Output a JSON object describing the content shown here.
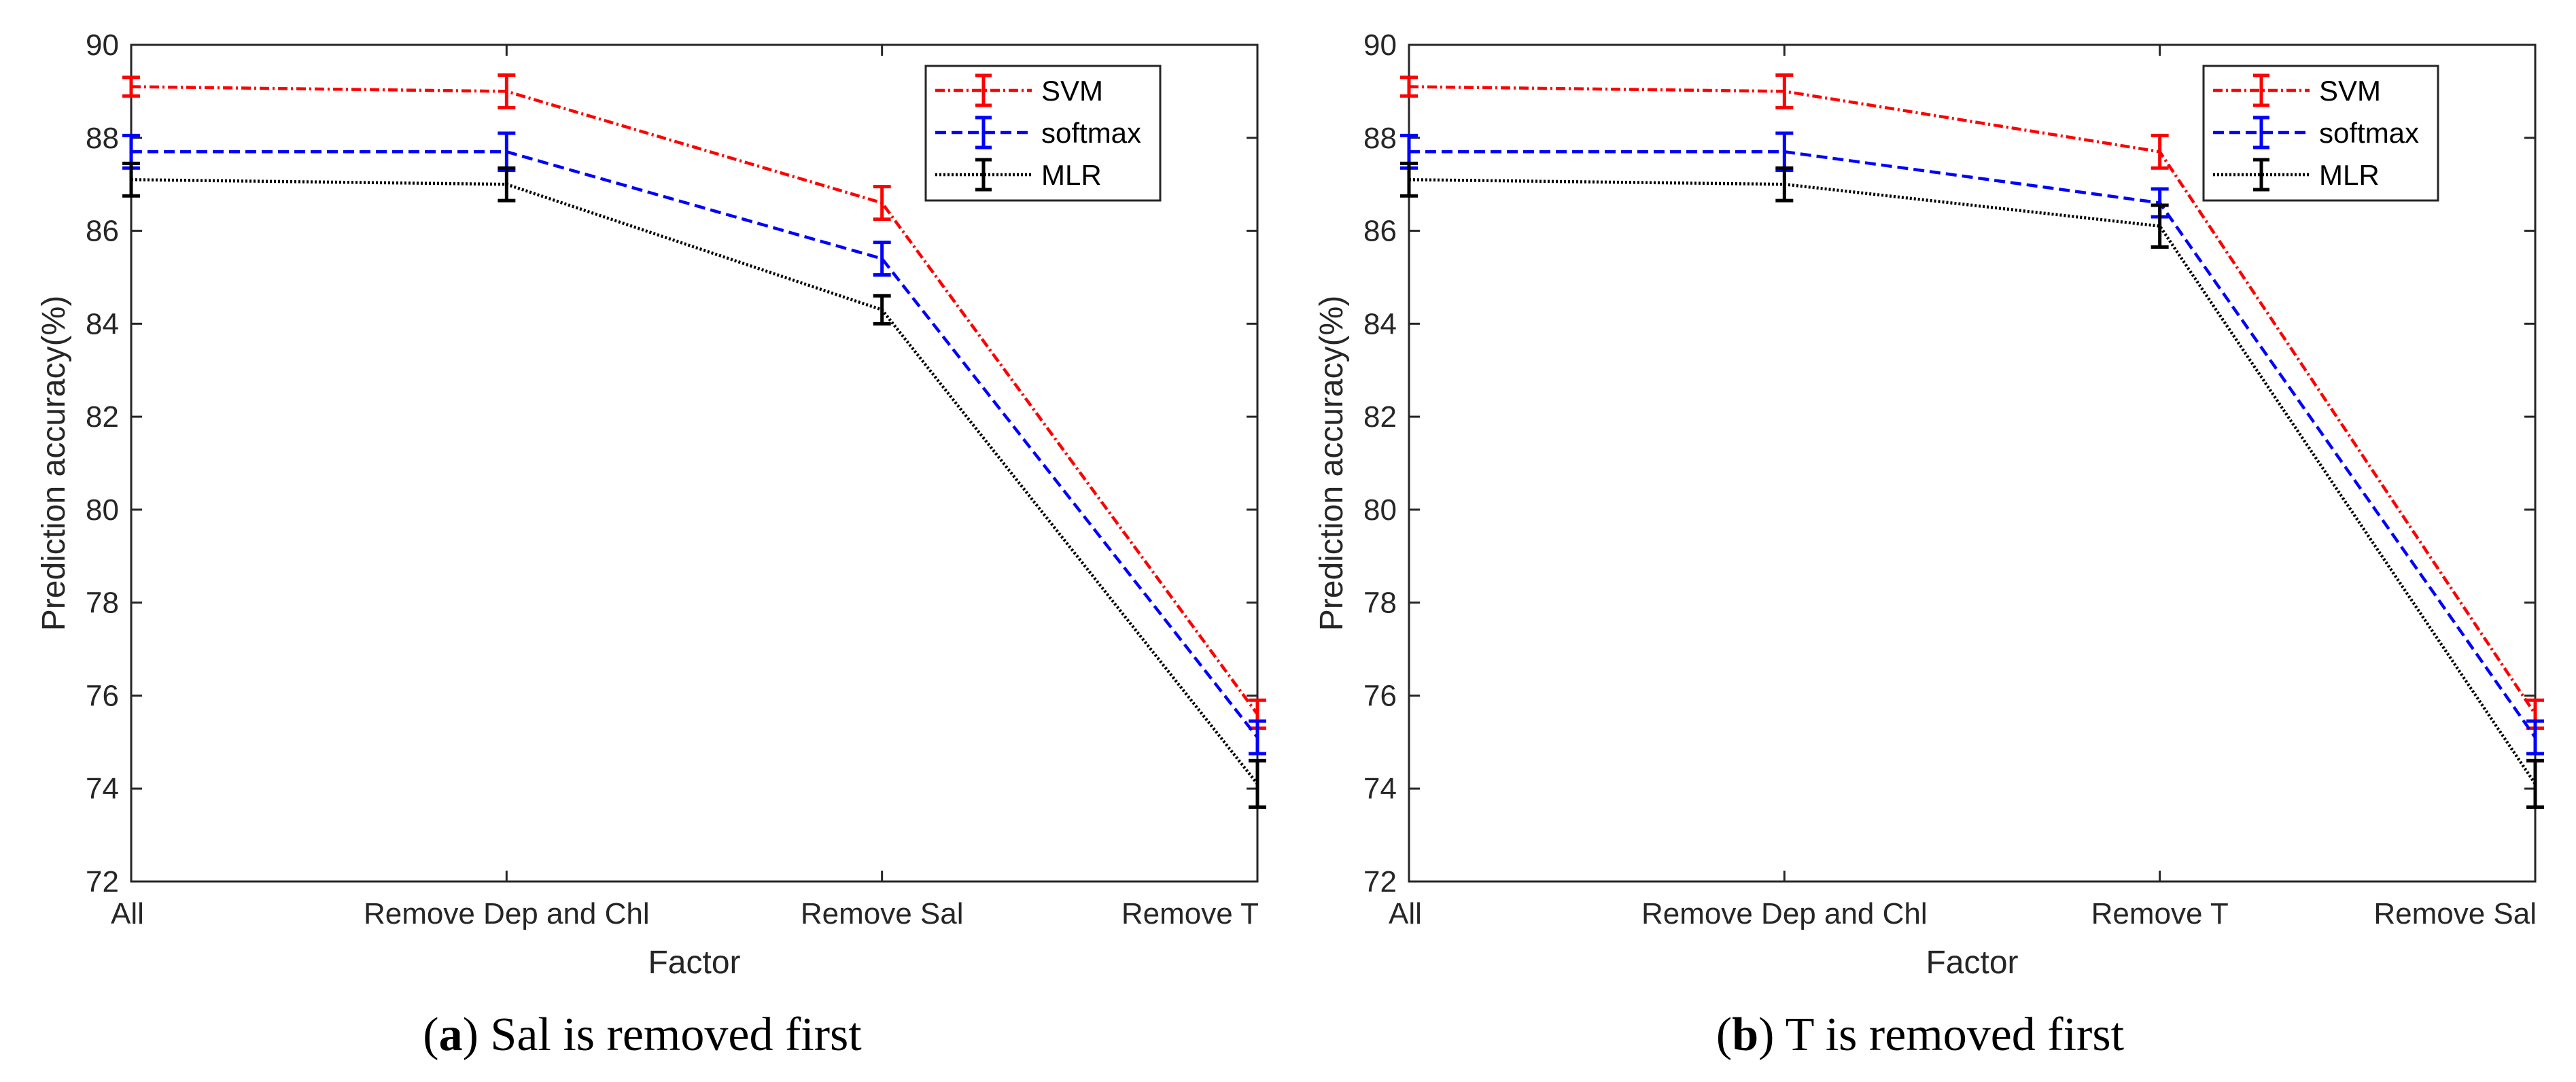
{
  "chart_data": [
    {
      "type": "line",
      "caption_letter": "a",
      "caption_text": "Sal is removed first",
      "xlabel": "Factor",
      "ylabel": "Prediction accuracy(%)",
      "categories": [
        "All",
        "Remove Dep and Chl",
        "Remove Sal",
        "Remove T"
      ],
      "ylim": [
        72,
        90
      ],
      "yticks": [
        "72",
        "74",
        "76",
        "78",
        "80",
        "82",
        "84",
        "86",
        "88",
        "90"
      ],
      "legend_position": "top-right",
      "series": [
        {
          "name": "SVM",
          "color": "#ff0000",
          "dash": "dashdot",
          "values": [
            89.1,
            89.0,
            86.6,
            75.6
          ],
          "errors": [
            0.2,
            0.35,
            0.35,
            0.3
          ]
        },
        {
          "name": "softmax",
          "color": "#0000ff",
          "dash": "dashed",
          "values": [
            87.7,
            87.7,
            85.4,
            75.1
          ],
          "errors": [
            0.35,
            0.4,
            0.35,
            0.35
          ]
        },
        {
          "name": "MLR",
          "color": "#000000",
          "dash": "dotted",
          "values": [
            87.1,
            87.0,
            84.3,
            74.1
          ],
          "errors": [
            0.35,
            0.35,
            0.3,
            0.5
          ]
        }
      ]
    },
    {
      "type": "line",
      "caption_letter": "b",
      "caption_text": "T is removed first",
      "xlabel": "Factor",
      "ylabel": "Prediction accuracy(%)",
      "categories": [
        "All",
        "Remove Dep and Chl",
        "Remove T",
        "Remove Sal"
      ],
      "ylim": [
        72,
        90
      ],
      "yticks": [
        "72",
        "74",
        "76",
        "78",
        "80",
        "82",
        "84",
        "86",
        "88",
        "90"
      ],
      "legend_position": "top-right",
      "series": [
        {
          "name": "SVM",
          "color": "#ff0000",
          "dash": "dashdot",
          "values": [
            89.1,
            89.0,
            87.7,
            75.6
          ],
          "errors": [
            0.2,
            0.35,
            0.35,
            0.3
          ]
        },
        {
          "name": "softmax",
          "color": "#0000ff",
          "dash": "dashed",
          "values": [
            87.7,
            87.7,
            86.6,
            75.1
          ],
          "errors": [
            0.35,
            0.4,
            0.3,
            0.35
          ]
        },
        {
          "name": "MLR",
          "color": "#000000",
          "dash": "dotted",
          "values": [
            87.1,
            87.0,
            86.1,
            74.1
          ],
          "errors": [
            0.35,
            0.35,
            0.45,
            0.5
          ]
        }
      ]
    }
  ]
}
